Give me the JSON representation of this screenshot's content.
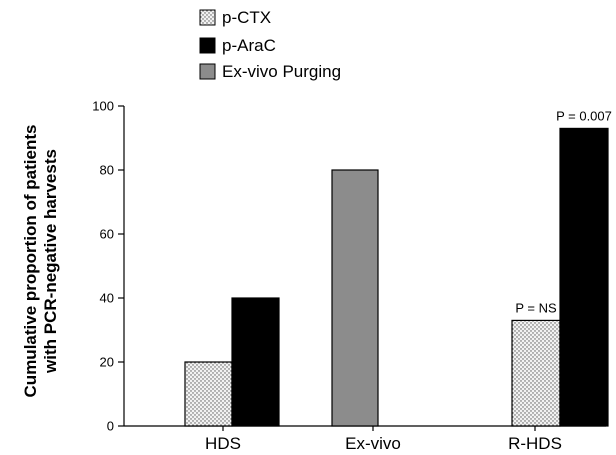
{
  "chart_data": {
    "type": "bar",
    "categories": [
      "HDS",
      "Ex-vivo",
      "R-HDS"
    ],
    "series": [
      {
        "name": "p-CTX",
        "values": [
          20,
          null,
          33
        ],
        "color": "#e8e8e8",
        "pattern": "dots"
      },
      {
        "name": "p-AraC",
        "values": [
          40,
          null,
          93
        ],
        "color": "#000000",
        "pattern": "solid"
      },
      {
        "name": "Ex-vivo Purging",
        "values": [
          null,
          80,
          null
        ],
        "color": "#8c8c8c",
        "pattern": "solid"
      }
    ],
    "ylabel_lines": [
      "Cumulative proportion of patients",
      "with PCR-negative harvests"
    ],
    "ylim": [
      0,
      100
    ],
    "yticks": [
      0,
      20,
      40,
      60,
      80,
      100
    ],
    "legend_position": "top-left",
    "grid": false,
    "annotations": [
      {
        "text": "P = NS",
        "category": "R-HDS",
        "series": "p-CTX"
      },
      {
        "text": "P = 0.007",
        "category": "R-HDS",
        "series": "p-AraC"
      }
    ]
  }
}
